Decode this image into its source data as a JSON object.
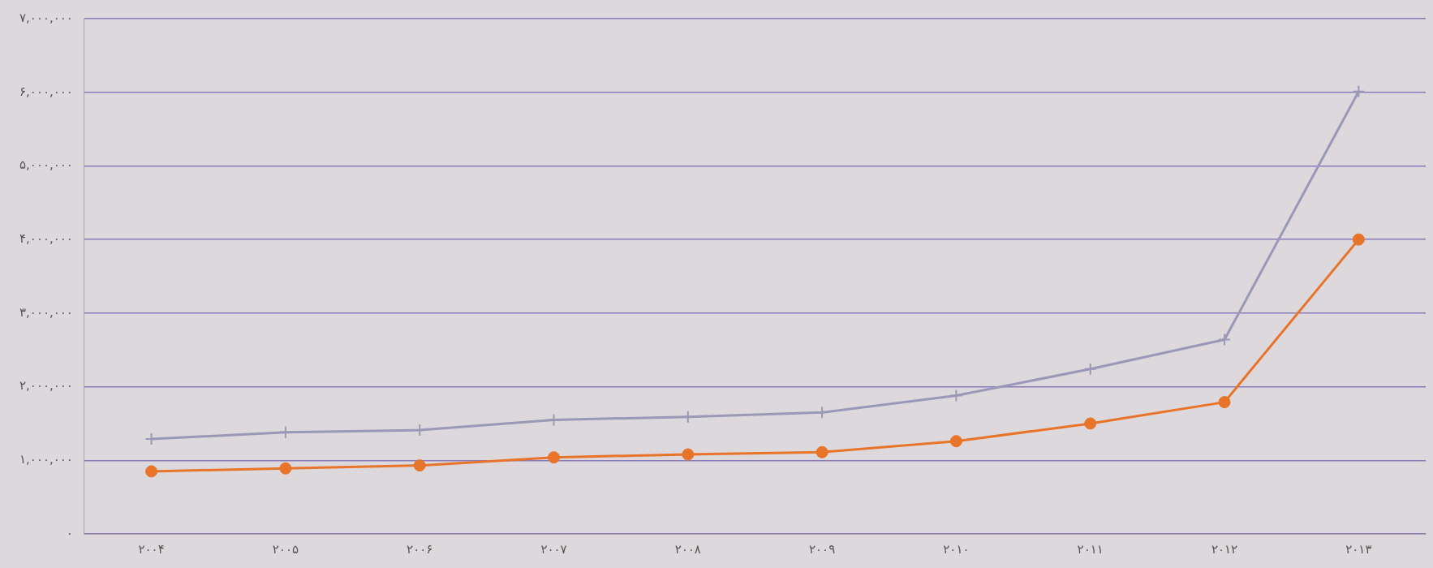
{
  "chart_data": {
    "type": "line",
    "categories": [
      "۲۰۰۴",
      "۲۰۰۵",
      "۲۰۰۶",
      "۲۰۰۷",
      "۲۰۰۸",
      "۲۰۰۹",
      "۲۰۱۰",
      "۲۰۱۱",
      "۲۰۱۲",
      "۲۰۱۳"
    ],
    "series": [
      {
        "color": "#9a98b8",
        "marker": "cross",
        "values": [
          1290000,
          1380000,
          1410000,
          1550000,
          1590000,
          1650000,
          1880000,
          2240000,
          2640000,
          6010000
        ]
      },
      {
        "color": "#e8742a",
        "marker": "circle",
        "values": [
          850000,
          890000,
          930000,
          1040000,
          1080000,
          1110000,
          1260000,
          1500000,
          1790000,
          4000000
        ]
      }
    ],
    "ylim": [
      0,
      7000000
    ],
    "yticks": [
      {
        "value": 0,
        "label": "۰"
      },
      {
        "value": 1000000,
        "label": "۱,۰۰۰,۰۰۰"
      },
      {
        "value": 2000000,
        "label": "۲,۰۰۰,۰۰۰"
      },
      {
        "value": 3000000,
        "label": "۳,۰۰۰,۰۰۰"
      },
      {
        "value": 4000000,
        "label": "۴,۰۰۰,۰۰۰"
      },
      {
        "value": 5000000,
        "label": "۵,۰۰۰,۰۰۰"
      },
      {
        "value": 6000000,
        "label": "۶,۰۰۰,۰۰۰"
      },
      {
        "value": 7000000,
        "label": "۷,۰۰۰,۰۰۰"
      }
    ],
    "grid": "y",
    "line_style": "solid"
  }
}
